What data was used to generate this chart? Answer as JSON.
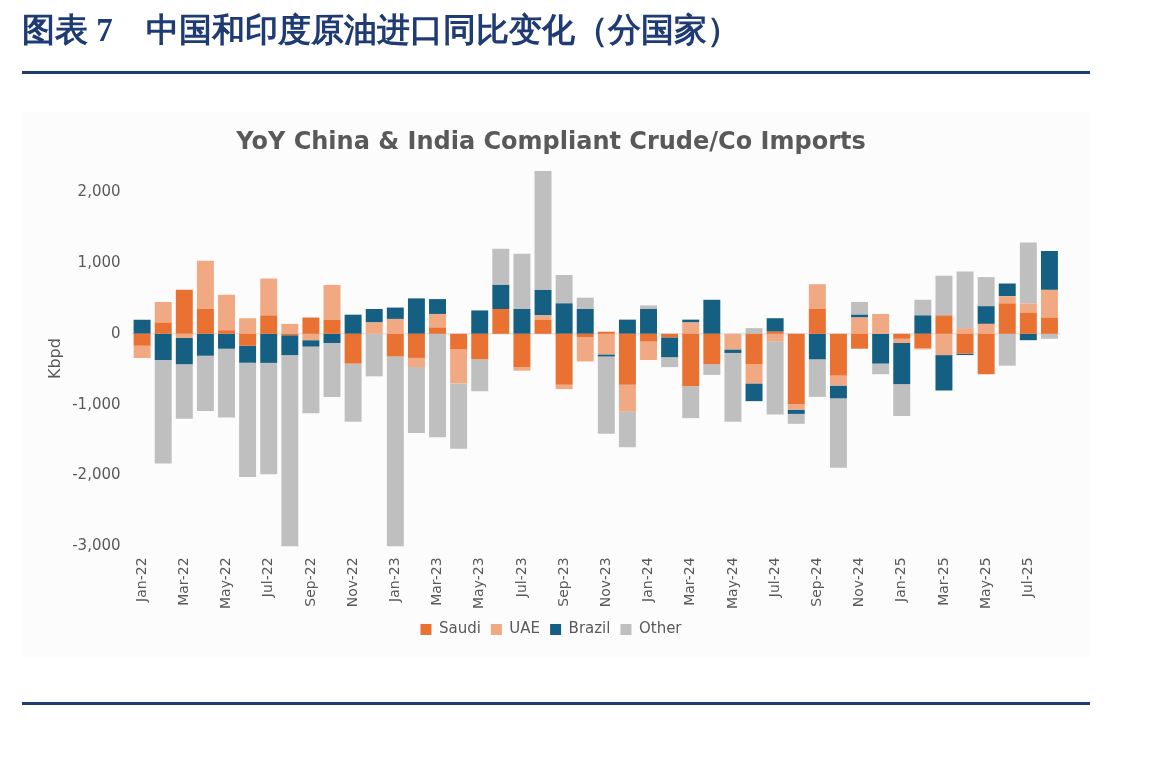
{
  "chart_data": {
    "type": "bar",
    "title": "图表 7　中国和印度原油进口同比变化（分国家）",
    "subtitle": "YoY China & India Compliant Crude/Co Imports",
    "ylabel": "Kbpd",
    "categories": [
      "Jan-22",
      null,
      "Mar-22",
      null,
      "May-22",
      null,
      "Jul-22",
      null,
      "Sep-22",
      null,
      "Nov-22",
      null,
      "Jan-23",
      null,
      "Mar-23",
      null,
      "May-23",
      null,
      "Jul-23",
      null,
      "Sep-23",
      null,
      "Nov-23",
      null,
      "Jan-24",
      null,
      "Mar-24",
      null,
      "May-24",
      null,
      "Jul-24",
      null,
      "Sep-24",
      null,
      "Nov-24",
      null,
      "Jan-25",
      null,
      "Mar-25",
      null,
      "May-25",
      null,
      "Jul-25",
      null
    ],
    "stacked": true,
    "series": [
      {
        "name": "Saudi",
        "color": "#e97132",
        "values": [
          -170,
          160,
          620,
          350,
          50,
          -170,
          260,
          -20,
          230,
          200,
          -420,
          null,
          -320,
          -340,
          90,
          -220,
          -360,
          350,
          -470,
          200,
          -720,
          -50,
          30,
          -720,
          -110,
          -50,
          -740,
          -430,
          null,
          -430,
          30,
          -990,
          350,
          -590,
          -210,
          null,
          -70,
          -200,
          260,
          -280,
          -570,
          430,
          300,
          230
        ]
      },
      {
        "name": "UAE",
        "color": "#f1a983",
        "values": [
          -170,
          290,
          -60,
          680,
          500,
          220,
          520,
          140,
          -90,
          490,
          null,
          160,
          210,
          -130,
          190,
          -480,
          null,
          null,
          -50,
          60,
          -60,
          -340,
          -290,
          -380,
          -260,
          null,
          160,
          null,
          -220,
          -270,
          -110,
          -80,
          350,
          -140,
          230,
          280,
          -60,
          -20,
          -300,
          80,
          140,
          100,
          130,
          390
        ]
      },
      {
        "name": "Brazil",
        "color": "#156082",
        "values": [
          200,
          -370,
          -370,
          -310,
          -210,
          -240,
          -410,
          -280,
          -90,
          -130,
          270,
          190,
          160,
          500,
          210,
          null,
          330,
          340,
          350,
          360,
          430,
          350,
          -30,
          200,
          350,
          -280,
          40,
          480,
          -50,
          -250,
          190,
          -60,
          -360,
          -180,
          40,
          -420,
          -580,
          260,
          -500,
          -20,
          250,
          180,
          -90,
          550
        ]
      },
      {
        "name": "Other",
        "color": "#bfbfbf",
        "values": [
          null,
          -1460,
          -770,
          -780,
          -970,
          -1610,
          -1570,
          -2700,
          -940,
          -760,
          -820,
          -600,
          -2680,
          -930,
          -1460,
          -920,
          -450,
          510,
          780,
          1680,
          400,
          160,
          -1090,
          -500,
          50,
          -140,
          -450,
          -150,
          -970,
          80,
          -1030,
          -140,
          -530,
          -980,
          180,
          -150,
          -450,
          220,
          560,
          800,
          410,
          -450,
          860,
          -70
        ]
      }
    ],
    "ylim": [
      -3000,
      2300
    ],
    "yticks": [
      {
        "value": -3000,
        "label": "-3,000"
      },
      {
        "value": -2000,
        "label": "-2,000"
      },
      {
        "value": -1000,
        "label": "-1,000"
      },
      0,
      {
        "value": 1000,
        "label": "1,000"
      },
      {
        "value": 2000,
        "label": "2,000"
      }
    ],
    "ref_lines": [
      {
        "axis": "y",
        "value": 0,
        "color": "#d9d9d9"
      }
    ],
    "grid": false,
    "legend": "bottom"
  }
}
